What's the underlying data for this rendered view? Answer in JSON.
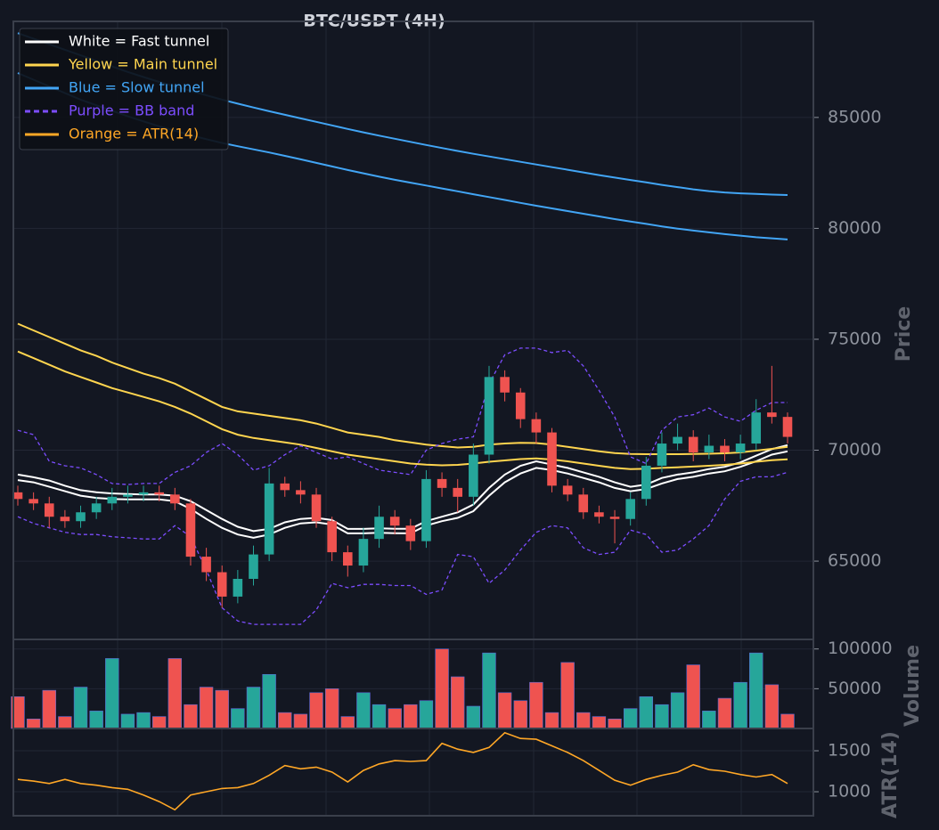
{
  "chart_data": [
    {
      "type": "candlestick",
      "title": "BTC/USDT (4H)",
      "y_label": "Price",
      "ylim": [
        61470,
        89330
      ],
      "yticks": [
        65000,
        70000,
        75000,
        80000,
        85000
      ],
      "grid": true,
      "legend": "upper left",
      "up_color": "#26a69a",
      "down_color": "#ef5350",
      "open": [
        68100,
        67800,
        67600,
        67000,
        66800,
        67200,
        67600,
        67900,
        68000,
        68100,
        68000,
        67600,
        65200,
        64500,
        63400,
        64200,
        65300,
        68500,
        68200,
        68000,
        66800,
        65400,
        64800,
        66000,
        67000,
        66600,
        65900,
        68700,
        68300,
        67900,
        69800,
        73300,
        72600,
        71400,
        70800,
        68400,
        68000,
        67200,
        67000,
        66900,
        67800,
        69300,
        70300,
        70600,
        69900,
        70200,
        69900,
        70300,
        71700,
        71500
      ],
      "high": [
        68400,
        68100,
        67900,
        67300,
        67500,
        67900,
        68300,
        68400,
        68400,
        68400,
        68300,
        67800,
        65600,
        64800,
        64600,
        65700,
        69200,
        68800,
        68600,
        68300,
        67000,
        65700,
        66500,
        67500,
        67300,
        66900,
        69100,
        69000,
        68700,
        70300,
        73800,
        73600,
        72800,
        71700,
        71000,
        68700,
        68300,
        67500,
        67300,
        68100,
        69700,
        70800,
        71200,
        70900,
        70700,
        70500,
        70700,
        72300,
        73800,
        71700
      ],
      "low": [
        67500,
        67300,
        66500,
        66500,
        66500,
        66900,
        67300,
        67600,
        67700,
        67700,
        67300,
        64800,
        64100,
        62900,
        63100,
        63900,
        65000,
        67900,
        67600,
        66500,
        65000,
        64300,
        64500,
        65600,
        66200,
        65500,
        65600,
        67900,
        67200,
        67500,
        69400,
        72200,
        71000,
        70300,
        68100,
        67700,
        66900,
        66700,
        65800,
        66600,
        67500,
        69000,
        70000,
        69500,
        69600,
        69500,
        69600,
        70000,
        71200,
        70300
      ],
      "close": [
        67800,
        67600,
        67000,
        66800,
        67200,
        67600,
        67900,
        68000,
        68100,
        68000,
        67600,
        65200,
        64500,
        63400,
        64200,
        65300,
        68500,
        68200,
        68000,
        66800,
        65400,
        64800,
        66000,
        67000,
        66600,
        65900,
        68700,
        68300,
        67900,
        69800,
        73300,
        72600,
        71400,
        70800,
        68400,
        68000,
        67200,
        67000,
        66900,
        67800,
        69300,
        70300,
        70600,
        69900,
        70200,
        69900,
        70300,
        71700,
        71500,
        70600
      ],
      "series": [
        {
          "name": "White = Fast tunnel",
          "color": "#ffffff",
          "dashed": false,
          "upper": [
            68900,
            68780,
            68630,
            68400,
            68200,
            68100,
            68050,
            68020,
            68000,
            68000,
            67950,
            67700,
            67300,
            66900,
            66550,
            66350,
            66450,
            66750,
            66900,
            66950,
            66850,
            66450,
            66450,
            66480,
            66460,
            66460,
            66800,
            67000,
            67200,
            67550,
            68300,
            68900,
            69300,
            69500,
            69350,
            69200,
            69000,
            68800,
            68550,
            68350,
            68450,
            68750,
            68900,
            69000,
            69150,
            69250,
            69450,
            69750,
            70050,
            70230
          ],
          "lower": [
            68650,
            68550,
            68350,
            68150,
            67950,
            67850,
            67800,
            67780,
            67780,
            67780,
            67700,
            67350,
            66900,
            66500,
            66200,
            66050,
            66200,
            66500,
            66700,
            66750,
            66650,
            66250,
            66250,
            66280,
            66260,
            66250,
            66600,
            66800,
            66950,
            67250,
            67950,
            68550,
            68950,
            69200,
            69100,
            68950,
            68750,
            68550,
            68300,
            68150,
            68250,
            68500,
            68700,
            68800,
            68950,
            69050,
            69250,
            69500,
            69800,
            69950
          ]
        },
        {
          "name": "Yellow = Main tunnel",
          "color": "#ffd54f",
          "dashed": false,
          "upper": [
            75700,
            75400,
            75100,
            74800,
            74500,
            74250,
            73950,
            73700,
            73450,
            73250,
            73000,
            72650,
            72300,
            71950,
            71750,
            71650,
            71550,
            71450,
            71350,
            71200,
            71000,
            70800,
            70700,
            70600,
            70450,
            70350,
            70250,
            70180,
            70120,
            70150,
            70250,
            70300,
            70330,
            70320,
            70250,
            70150,
            70050,
            69950,
            69870,
            69830,
            69820,
            69820,
            69820,
            69830,
            69840,
            69860,
            69900,
            69980,
            70060,
            70150
          ],
          "lower": [
            74450,
            74150,
            73850,
            73550,
            73300,
            73050,
            72800,
            72600,
            72400,
            72200,
            71950,
            71650,
            71300,
            70950,
            70700,
            70550,
            70450,
            70350,
            70250,
            70100,
            69950,
            69800,
            69700,
            69600,
            69500,
            69400,
            69350,
            69320,
            69340,
            69400,
            69480,
            69540,
            69600,
            69630,
            69580,
            69500,
            69400,
            69300,
            69200,
            69150,
            69160,
            69200,
            69230,
            69260,
            69300,
            69340,
            69400,
            69480,
            69550,
            69590
          ]
        },
        {
          "name": "Blue = Slow tunnel",
          "color": "#42a5f5",
          "dashed": false,
          "upper": [
            88800,
            88550,
            88300,
            88050,
            87800,
            87550,
            87300,
            87050,
            86820,
            86600,
            86400,
            86200,
            86000,
            85800,
            85620,
            85450,
            85280,
            85120,
            84960,
            84800,
            84640,
            84480,
            84330,
            84180,
            84040,
            83900,
            83760,
            83620,
            83490,
            83360,
            83240,
            83120,
            83000,
            82880,
            82760,
            82640,
            82520,
            82400,
            82290,
            82180,
            82070,
            81960,
            81860,
            81760,
            81680,
            81620,
            81580,
            81550,
            81520,
            81500
          ],
          "lower": [
            87000,
            86700,
            86400,
            86100,
            85800,
            85550,
            85300,
            85050,
            84820,
            84600,
            84400,
            84200,
            84020,
            83850,
            83700,
            83560,
            83420,
            83270,
            83110,
            82950,
            82790,
            82630,
            82480,
            82330,
            82190,
            82060,
            81930,
            81800,
            81670,
            81540,
            81410,
            81280,
            81150,
            81020,
            80900,
            80780,
            80660,
            80540,
            80420,
            80310,
            80200,
            80090,
            79990,
            79900,
            79820,
            79740,
            79670,
            79600,
            79550,
            79500
          ]
        },
        {
          "name": "Purple = BB band",
          "color": "#7c4dff",
          "dashed": true,
          "upper": [
            70900,
            70700,
            69500,
            69300,
            69200,
            68900,
            68500,
            68450,
            68500,
            68500,
            69000,
            69300,
            69900,
            70300,
            69800,
            69100,
            69300,
            69800,
            70200,
            69900,
            69600,
            69700,
            69400,
            69100,
            69000,
            68900,
            70000,
            70300,
            70500,
            70600,
            73000,
            74300,
            74600,
            74600,
            74400,
            74500,
            73800,
            72700,
            71500,
            69700,
            69400,
            70900,
            71500,
            71600,
            71900,
            71500,
            71300,
            71800,
            72150,
            72150
          ],
          "lower": [
            67000,
            66700,
            66500,
            66300,
            66200,
            66200,
            66100,
            66050,
            66000,
            66000,
            66600,
            66100,
            64600,
            62900,
            62300,
            62150,
            62150,
            62150,
            62150,
            62800,
            64000,
            63800,
            63950,
            63950,
            63900,
            63900,
            63500,
            63700,
            65300,
            65200,
            64000,
            64600,
            65500,
            66300,
            66600,
            66500,
            65600,
            65300,
            65400,
            66400,
            66200,
            65400,
            65500,
            66000,
            66600,
            67800,
            68600,
            68800,
            68800,
            69000
          ]
        }
      ]
    },
    {
      "type": "bar",
      "y_label": "Volume",
      "ylim": [
        0,
        112000
      ],
      "yticks": [
        50000,
        100000
      ],
      "grid": true,
      "values": [
        40000,
        12000,
        48000,
        15000,
        52000,
        22000,
        88000,
        18000,
        20000,
        15000,
        88000,
        30000,
        52000,
        48000,
        25000,
        52000,
        68000,
        20000,
        18000,
        45000,
        50000,
        15000,
        45000,
        30000,
        25000,
        30000,
        35000,
        100000,
        65000,
        28000,
        95000,
        45000,
        35000,
        58000,
        20000,
        83000,
        20000,
        15000,
        12000,
        25000,
        40000,
        30000,
        45000,
        80000,
        22000,
        38000,
        58000,
        95000,
        55000,
        18000
      ]
    },
    {
      "type": "line",
      "y_label": "ATR(14)",
      "ylim": [
        707,
        1772
      ],
      "yticks": [
        1000,
        1500
      ],
      "grid": true,
      "series": [
        {
          "name": "Orange = ATR(14)",
          "color": "#ffa726",
          "values": [
            1150,
            1130,
            1100,
            1150,
            1100,
            1080,
            1050,
            1030,
            960,
            880,
            780,
            960,
            1000,
            1040,
            1050,
            1100,
            1200,
            1320,
            1280,
            1300,
            1240,
            1120,
            1260,
            1340,
            1380,
            1370,
            1380,
            1590,
            1520,
            1480,
            1540,
            1720,
            1650,
            1640,
            1560,
            1480,
            1380,
            1260,
            1140,
            1080,
            1150,
            1200,
            1240,
            1330,
            1270,
            1250,
            1210,
            1180,
            1210,
            1100
          ]
        }
      ]
    }
  ]
}
